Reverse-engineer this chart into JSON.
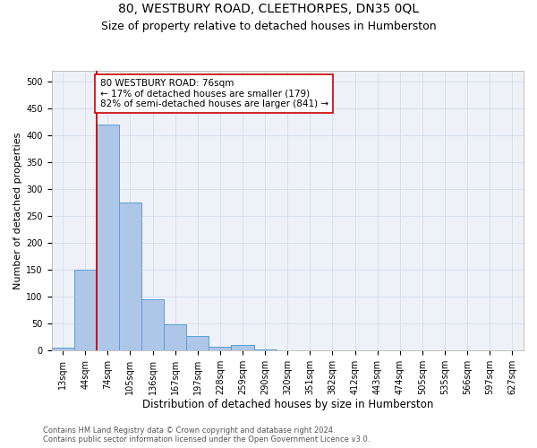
{
  "title_line1": "80, WESTBURY ROAD, CLEETHORPES, DN35 0QL",
  "title_line2": "Size of property relative to detached houses in Humberston",
  "xlabel": "Distribution of detached houses by size in Humberston",
  "ylabel": "Number of detached properties",
  "footnote": "Contains HM Land Registry data © Crown copyright and database right 2024.\nContains public sector information licensed under the Open Government Licence v3.0.",
  "bin_labels": [
    "13sqm",
    "44sqm",
    "74sqm",
    "105sqm",
    "136sqm",
    "167sqm",
    "197sqm",
    "228sqm",
    "259sqm",
    "290sqm",
    "320sqm",
    "351sqm",
    "382sqm",
    "412sqm",
    "443sqm",
    "474sqm",
    "505sqm",
    "535sqm",
    "566sqm",
    "597sqm",
    "627sqm"
  ],
  "bar_values": [
    5,
    150,
    420,
    275,
    95,
    48,
    27,
    7,
    10,
    2,
    1,
    0,
    0,
    0,
    0,
    0,
    0,
    0,
    0,
    0,
    0
  ],
  "bar_color": "#aec6e8",
  "bar_edge_color": "#5a9fd4",
  "subject_bin_index": 2,
  "subject_line_color": "#cc0000",
  "annotation_text": "80 WESTBURY ROAD: 76sqm\n← 17% of detached houses are smaller (179)\n82% of semi-detached houses are larger (841) →",
  "ylim": [
    0,
    520
  ],
  "yticks": [
    0,
    50,
    100,
    150,
    200,
    250,
    300,
    350,
    400,
    450,
    500
  ],
  "background_color": "#eef2f8",
  "grid_color": "#d8e0ee",
  "title1_fontsize": 10,
  "title2_fontsize": 9,
  "xlabel_fontsize": 8.5,
  "ylabel_fontsize": 8,
  "tick_fontsize": 7,
  "annotation_fontsize": 7.5,
  "footnote_fontsize": 6
}
